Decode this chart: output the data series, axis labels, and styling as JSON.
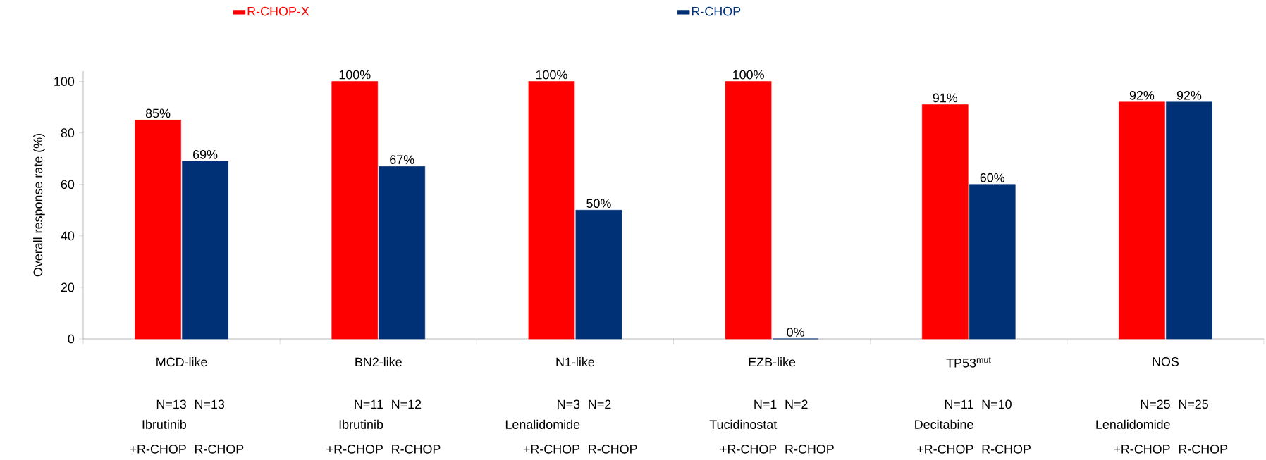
{
  "chart_data": {
    "type": "bar",
    "ylabel": "Overall response rate (%)",
    "categories": [
      "MCD-like",
      "BN2-like",
      "N1-like",
      "EZB-like",
      "TP53$^{mut}$",
      "NOS"
    ],
    "series": [
      {
        "name": "R-CHOP-X",
        "color": "#ff0000",
        "values": [
          85,
          100,
          100,
          100,
          91,
          92
        ],
        "value_labels": [
          "85%",
          "100%",
          "100%",
          "100%",
          "91%",
          "92%"
        ]
      },
      {
        "name": "R-CHOP",
        "color": "#003176",
        "values": [
          69,
          67,
          50,
          0,
          60,
          92
        ],
        "value_labels": [
          "69%",
          "67%",
          "50%",
          "0%",
          "60%",
          "92%"
        ]
      }
    ],
    "ylim": [
      0,
      104
    ],
    "yticks": [
      0,
      20,
      40,
      60,
      80,
      100
    ],
    "legend": "top",
    "grid": false,
    "annotations": [
      "N=13",
      "Ibrutinib",
      "+R-CHOP",
      "N=13",
      "R-CHOP",
      "N=11",
      "Ibrutinib",
      "+R-CHOP",
      "N=12",
      "R-CHOP",
      "N=3",
      "Lenalidomide",
      "+R-CHOP",
      "N=2",
      "R-CHOP",
      "N=1",
      "Tucidinostat",
      "+R-CHOP",
      "N=2",
      "R-CHOP",
      "N=11",
      "Decitabine",
      "+R-CHOP",
      "N=10",
      "R-CHOP",
      "N=25",
      "Lenalidomide",
      "+R-CHOP",
      "N=25",
      "R-CHOP"
    ]
  }
}
